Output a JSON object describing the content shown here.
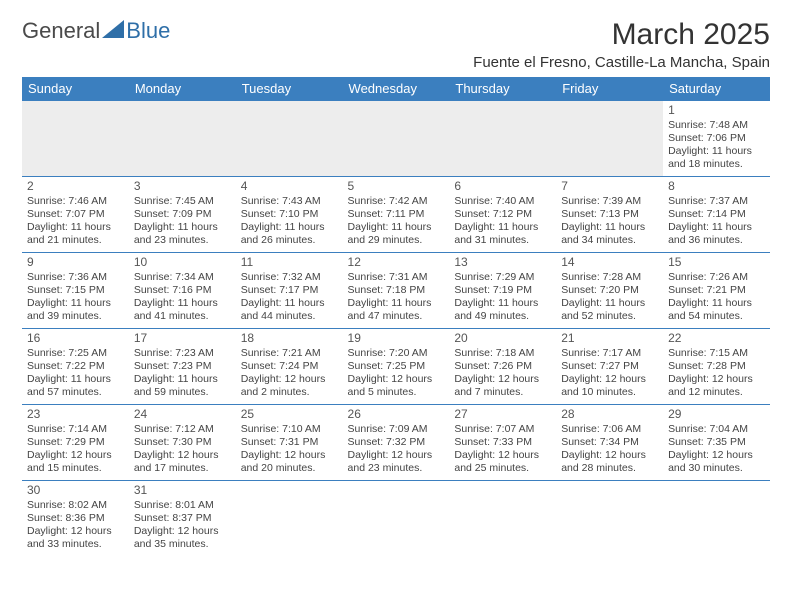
{
  "logo": {
    "text1": "General",
    "text2": "Blue",
    "color_general": "#4a4a4a",
    "color_blue": "#2f6fa8",
    "triangle_color": "#2f6fa8"
  },
  "header": {
    "month_title": "March 2025",
    "location": "Fuente el Fresno, Castille-La Mancha, Spain"
  },
  "colors": {
    "header_bg": "#3b7fbf",
    "header_text": "#ffffff",
    "cell_border": "#3b7fbf",
    "blank_bg": "#ededed",
    "text": "#444444",
    "daynum": "#555555"
  },
  "day_headers": [
    "Sunday",
    "Monday",
    "Tuesday",
    "Wednesday",
    "Thursday",
    "Friday",
    "Saturday"
  ],
  "weeks": [
    [
      null,
      null,
      null,
      null,
      null,
      null,
      {
        "n": "1",
        "sr": "Sunrise: 7:48 AM",
        "ss": "Sunset: 7:06 PM",
        "dl1": "Daylight: 11 hours",
        "dl2": "and 18 minutes."
      }
    ],
    [
      {
        "n": "2",
        "sr": "Sunrise: 7:46 AM",
        "ss": "Sunset: 7:07 PM",
        "dl1": "Daylight: 11 hours",
        "dl2": "and 21 minutes."
      },
      {
        "n": "3",
        "sr": "Sunrise: 7:45 AM",
        "ss": "Sunset: 7:09 PM",
        "dl1": "Daylight: 11 hours",
        "dl2": "and 23 minutes."
      },
      {
        "n": "4",
        "sr": "Sunrise: 7:43 AM",
        "ss": "Sunset: 7:10 PM",
        "dl1": "Daylight: 11 hours",
        "dl2": "and 26 minutes."
      },
      {
        "n": "5",
        "sr": "Sunrise: 7:42 AM",
        "ss": "Sunset: 7:11 PM",
        "dl1": "Daylight: 11 hours",
        "dl2": "and 29 minutes."
      },
      {
        "n": "6",
        "sr": "Sunrise: 7:40 AM",
        "ss": "Sunset: 7:12 PM",
        "dl1": "Daylight: 11 hours",
        "dl2": "and 31 minutes."
      },
      {
        "n": "7",
        "sr": "Sunrise: 7:39 AM",
        "ss": "Sunset: 7:13 PM",
        "dl1": "Daylight: 11 hours",
        "dl2": "and 34 minutes."
      },
      {
        "n": "8",
        "sr": "Sunrise: 7:37 AM",
        "ss": "Sunset: 7:14 PM",
        "dl1": "Daylight: 11 hours",
        "dl2": "and 36 minutes."
      }
    ],
    [
      {
        "n": "9",
        "sr": "Sunrise: 7:36 AM",
        "ss": "Sunset: 7:15 PM",
        "dl1": "Daylight: 11 hours",
        "dl2": "and 39 minutes."
      },
      {
        "n": "10",
        "sr": "Sunrise: 7:34 AM",
        "ss": "Sunset: 7:16 PM",
        "dl1": "Daylight: 11 hours",
        "dl2": "and 41 minutes."
      },
      {
        "n": "11",
        "sr": "Sunrise: 7:32 AM",
        "ss": "Sunset: 7:17 PM",
        "dl1": "Daylight: 11 hours",
        "dl2": "and 44 minutes."
      },
      {
        "n": "12",
        "sr": "Sunrise: 7:31 AM",
        "ss": "Sunset: 7:18 PM",
        "dl1": "Daylight: 11 hours",
        "dl2": "and 47 minutes."
      },
      {
        "n": "13",
        "sr": "Sunrise: 7:29 AM",
        "ss": "Sunset: 7:19 PM",
        "dl1": "Daylight: 11 hours",
        "dl2": "and 49 minutes."
      },
      {
        "n": "14",
        "sr": "Sunrise: 7:28 AM",
        "ss": "Sunset: 7:20 PM",
        "dl1": "Daylight: 11 hours",
        "dl2": "and 52 minutes."
      },
      {
        "n": "15",
        "sr": "Sunrise: 7:26 AM",
        "ss": "Sunset: 7:21 PM",
        "dl1": "Daylight: 11 hours",
        "dl2": "and 54 minutes."
      }
    ],
    [
      {
        "n": "16",
        "sr": "Sunrise: 7:25 AM",
        "ss": "Sunset: 7:22 PM",
        "dl1": "Daylight: 11 hours",
        "dl2": "and 57 minutes."
      },
      {
        "n": "17",
        "sr": "Sunrise: 7:23 AM",
        "ss": "Sunset: 7:23 PM",
        "dl1": "Daylight: 11 hours",
        "dl2": "and 59 minutes."
      },
      {
        "n": "18",
        "sr": "Sunrise: 7:21 AM",
        "ss": "Sunset: 7:24 PM",
        "dl1": "Daylight: 12 hours",
        "dl2": "and 2 minutes."
      },
      {
        "n": "19",
        "sr": "Sunrise: 7:20 AM",
        "ss": "Sunset: 7:25 PM",
        "dl1": "Daylight: 12 hours",
        "dl2": "and 5 minutes."
      },
      {
        "n": "20",
        "sr": "Sunrise: 7:18 AM",
        "ss": "Sunset: 7:26 PM",
        "dl1": "Daylight: 12 hours",
        "dl2": "and 7 minutes."
      },
      {
        "n": "21",
        "sr": "Sunrise: 7:17 AM",
        "ss": "Sunset: 7:27 PM",
        "dl1": "Daylight: 12 hours",
        "dl2": "and 10 minutes."
      },
      {
        "n": "22",
        "sr": "Sunrise: 7:15 AM",
        "ss": "Sunset: 7:28 PM",
        "dl1": "Daylight: 12 hours",
        "dl2": "and 12 minutes."
      }
    ],
    [
      {
        "n": "23",
        "sr": "Sunrise: 7:14 AM",
        "ss": "Sunset: 7:29 PM",
        "dl1": "Daylight: 12 hours",
        "dl2": "and 15 minutes."
      },
      {
        "n": "24",
        "sr": "Sunrise: 7:12 AM",
        "ss": "Sunset: 7:30 PM",
        "dl1": "Daylight: 12 hours",
        "dl2": "and 17 minutes."
      },
      {
        "n": "25",
        "sr": "Sunrise: 7:10 AM",
        "ss": "Sunset: 7:31 PM",
        "dl1": "Daylight: 12 hours",
        "dl2": "and 20 minutes."
      },
      {
        "n": "26",
        "sr": "Sunrise: 7:09 AM",
        "ss": "Sunset: 7:32 PM",
        "dl1": "Daylight: 12 hours",
        "dl2": "and 23 minutes."
      },
      {
        "n": "27",
        "sr": "Sunrise: 7:07 AM",
        "ss": "Sunset: 7:33 PM",
        "dl1": "Daylight: 12 hours",
        "dl2": "and 25 minutes."
      },
      {
        "n": "28",
        "sr": "Sunrise: 7:06 AM",
        "ss": "Sunset: 7:34 PM",
        "dl1": "Daylight: 12 hours",
        "dl2": "and 28 minutes."
      },
      {
        "n": "29",
        "sr": "Sunrise: 7:04 AM",
        "ss": "Sunset: 7:35 PM",
        "dl1": "Daylight: 12 hours",
        "dl2": "and 30 minutes."
      }
    ],
    [
      {
        "n": "30",
        "sr": "Sunrise: 8:02 AM",
        "ss": "Sunset: 8:36 PM",
        "dl1": "Daylight: 12 hours",
        "dl2": "and 33 minutes."
      },
      {
        "n": "31",
        "sr": "Sunrise: 8:01 AM",
        "ss": "Sunset: 8:37 PM",
        "dl1": "Daylight: 12 hours",
        "dl2": "and 35 minutes."
      },
      null,
      null,
      null,
      null,
      null
    ]
  ]
}
